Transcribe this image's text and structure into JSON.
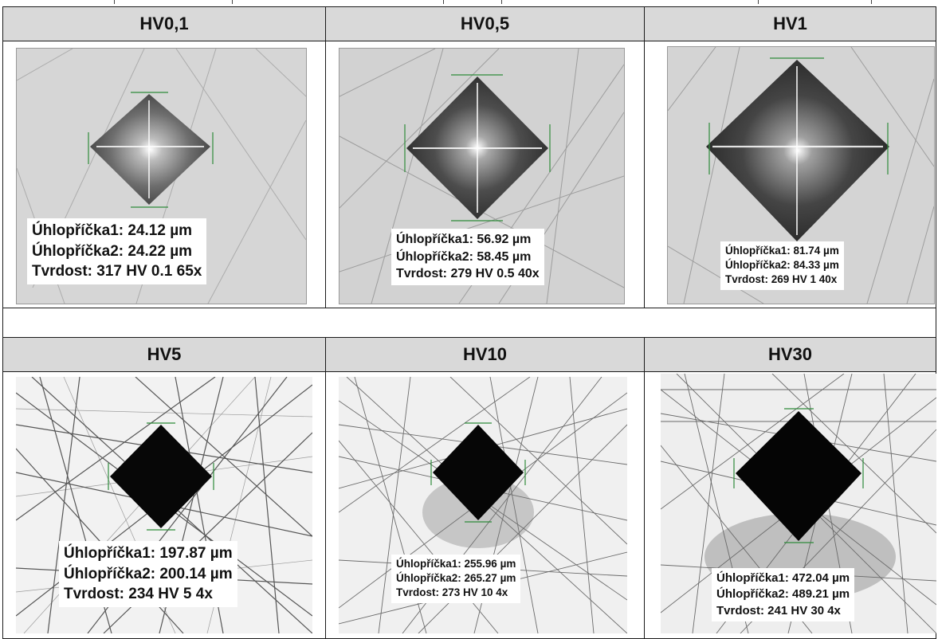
{
  "table": {
    "rows": [
      {
        "cells": [
          {
            "label": "HV0,1",
            "diagonal1": "Úhlopříčka1: 24.12 µm",
            "diagonal2": "Úhlopříčka2: 24.22 µm",
            "hardness": "Tvrdost: 317 HV 0.1 65x"
          },
          {
            "label": "HV0,5",
            "diagonal1": "Úhlopříčka1: 56.92 µm",
            "diagonal2": "Úhlopříčka2: 58.45 µm",
            "hardness": "Tvrdost: 279 HV 0.5 40x"
          },
          {
            "label": "HV1",
            "diagonal1": "Úhlopříčka1: 81.74 µm",
            "diagonal2": "Úhlopříčka2: 84.33 µm",
            "hardness": "Tvrdost: 269 HV 1 40x"
          }
        ]
      },
      {
        "cells": [
          {
            "label": "HV5",
            "diagonal1": "Úhlopříčka1: 197.87 µm",
            "diagonal2": "Úhlopříčka2: 200.14 µm",
            "hardness": "Tvrdost: 234 HV 5 4x"
          },
          {
            "label": "HV10",
            "diagonal1": "Úhlopříčka1: 255.96 µm",
            "diagonal2": "Úhlopříčka2: 265.27 µm",
            "hardness": "Tvrdost: 273 HV 10 4x"
          },
          {
            "label": "HV30",
            "diagonal1": "Úhlopříčka1: 472.04 µm",
            "diagonal2": "Úhlopříčka2: 489.21 µm",
            "hardness": "Tvrdost: 241 HV 30 4x"
          }
        ]
      }
    ]
  },
  "colors": {
    "header_bg": "#d9d9d9",
    "border": "#1a1a1a",
    "photo_bg_light": "#d8d8d8",
    "indent_dark": "#0a0a0a",
    "marker_green": "#2e8b3a"
  }
}
